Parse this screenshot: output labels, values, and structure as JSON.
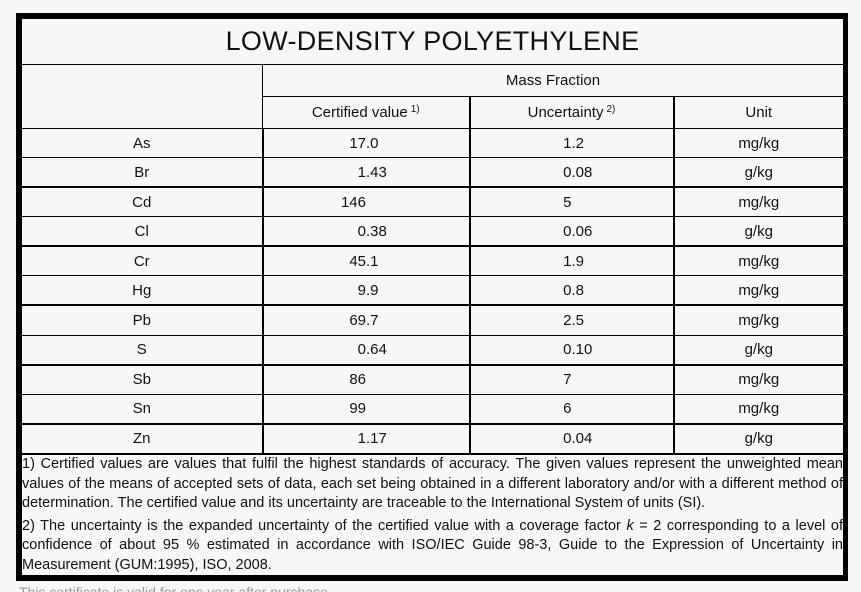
{
  "title": "LOW-DENSITY POLYETHYLENE",
  "columns": {
    "group": "Mass Fraction",
    "certified": {
      "label": "Certified value",
      "sup": "1)"
    },
    "uncertainty": {
      "label": "Uncertainty",
      "sup": "2)"
    },
    "unit": "Unit"
  },
  "table": {
    "rows": [
      {
        "element": "As",
        "certified_value": "17.0",
        "uncertainty": "1.2",
        "unit": "mg/kg"
      },
      {
        "element": "Br",
        "certified_value": "1.43",
        "uncertainty": "0.08",
        "unit": "g/kg"
      },
      {
        "element": "Cd",
        "certified_value": "146",
        "uncertainty": "5",
        "unit": "mg/kg"
      },
      {
        "element": "Cl",
        "certified_value": "0.38",
        "uncertainty": "0.06",
        "unit": "g/kg"
      },
      {
        "element": "Cr",
        "certified_value": "45.1",
        "uncertainty": "1.9",
        "unit": "mg/kg"
      },
      {
        "element": "Hg",
        "certified_value": "9.9",
        "uncertainty": "0.8",
        "unit": "mg/kg"
      },
      {
        "element": "Pb",
        "certified_value": "69.7",
        "uncertainty": "2.5",
        "unit": "mg/kg"
      },
      {
        "element": "S",
        "certified_value": "0.64",
        "uncertainty": "0.10",
        "unit": "g/kg"
      },
      {
        "element": "Sb",
        "certified_value": "86",
        "uncertainty": "7",
        "unit": "mg/kg"
      },
      {
        "element": "Sn",
        "certified_value": "99",
        "uncertainty": "6",
        "unit": "mg/kg"
      },
      {
        "element": "Zn",
        "certified_value": "1.17",
        "uncertainty": "0.04",
        "unit": "g/kg"
      }
    ]
  },
  "footnotes": {
    "note1": "1) Certified values are values that fulfil the highest standards of accuracy. The given values represent the unweighted mean values of the means of accepted sets of data, each set being obtained in a different laboratory and/or with a different method of determination. The certified value and its uncertainty are traceable to the International System of units (SI).",
    "note2_pre": "2) The uncertainty is the expanded uncertainty of the certified value with a coverage factor ",
    "note2_k": "k",
    "note2_post": " = 2 corresponding to a level of confidence of about 95 % estimated in accordance with ISO/IEC Guide 98-3, Guide to the Expression of Uncertainty in Measurement (GUM:1995), ISO, 2008."
  },
  "clipped_text": "This certificate is valid for one year after purchase",
  "colors": {
    "border": "#000000",
    "background": "#f7f7f8",
    "text": "#111111",
    "clipped_text": "#9b9b9b"
  }
}
